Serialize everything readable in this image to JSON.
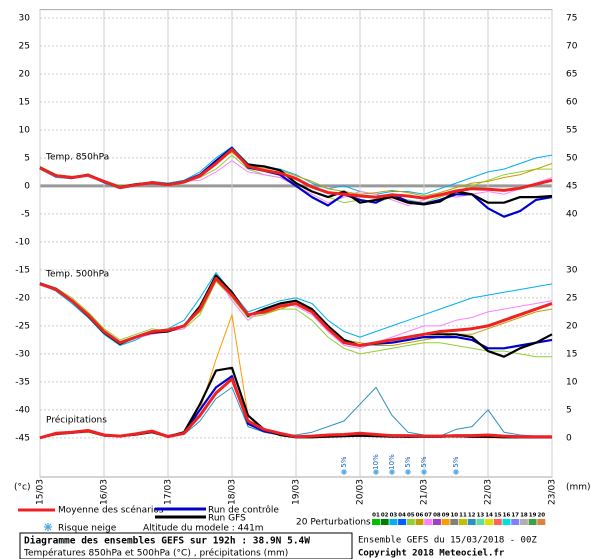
{
  "chart_data": {
    "type": "line",
    "x": [
      0,
      6,
      12,
      18,
      24,
      30,
      36,
      42,
      48,
      54,
      60,
      66,
      72,
      78,
      84,
      90,
      96,
      102,
      108,
      114,
      120,
      126,
      132,
      138,
      144,
      150,
      156,
      162,
      168,
      174,
      180,
      186,
      192
    ],
    "xlim": [
      0,
      192
    ],
    "xticks": [
      {
        "value": 0,
        "label": "15/03"
      },
      {
        "value": 24,
        "label": "16/03"
      },
      {
        "value": 48,
        "label": "17/03"
      },
      {
        "value": 72,
        "label": "18/03"
      },
      {
        "value": 96,
        "label": "19/03"
      },
      {
        "value": 120,
        "label": "20/03"
      },
      {
        "value": 144,
        "label": "21/03"
      },
      {
        "value": 168,
        "label": "22/03"
      },
      {
        "value": 192,
        "label": "23/03"
      }
    ],
    "ylim": [
      -52,
      31.5
    ],
    "yticks": [
      30,
      25,
      20,
      15,
      10,
      5,
      0,
      -5,
      -10,
      -15,
      -20,
      -25,
      -30,
      -35,
      -40,
      -45
    ],
    "y2lim": [
      -7,
      76.5
    ],
    "y2ticks": [
      75,
      70,
      65,
      60,
      55,
      50,
      45,
      40,
      30,
      25,
      20,
      15,
      10,
      5,
      0
    ],
    "y_unit": "(°c)",
    "y2_unit": "(mm)",
    "grid": true,
    "panel_labels": [
      "Temp. 850hPa",
      "Temp. 500hPa",
      "Précipitations"
    ],
    "series": [
      {
        "color": "#00b0f0",
        "values": [
          3,
          1.5,
          1.3,
          2,
          0.5,
          -0.5,
          0,
          0.8,
          0.5,
          1,
          2.5,
          5,
          7,
          4,
          3.5,
          3,
          2,
          0.5,
          -0.5,
          0,
          -1,
          -1.5,
          -1,
          -1,
          -1.5,
          -0.5,
          0.5,
          1.5,
          2.5,
          3,
          4,
          5,
          5.5
        ]
      },
      {
        "color": "#90d030",
        "values": [
          3.5,
          2,
          1.7,
          1.8,
          1,
          0,
          0.3,
          0.5,
          0,
          0.5,
          1.5,
          3,
          5.5,
          3,
          2,
          1.5,
          0.5,
          -1,
          -2,
          -3,
          -2.5,
          -3,
          -2,
          -2.5,
          -3,
          -2,
          -1,
          0,
          1,
          2,
          2.5,
          3,
          3
        ]
      },
      {
        "color": "#ff80ff",
        "values": [
          3,
          1.8,
          1.5,
          2,
          0.8,
          -0.2,
          0.2,
          0.6,
          0.3,
          0.8,
          1,
          2.5,
          4.5,
          2.5,
          2,
          1.5,
          0,
          -1.5,
          -3,
          -2,
          -1,
          -1.5,
          -2.5,
          -3.5,
          -2.5,
          -1.5,
          -2,
          -1.5,
          -1,
          -1.5,
          -0.5,
          0.5,
          1.5
        ]
      },
      {
        "color": "#c0a000",
        "values": [
          3.3,
          2,
          1.6,
          1.9,
          0.7,
          -0.4,
          0.1,
          0.7,
          0.2,
          0.6,
          2,
          4.5,
          6,
          3.8,
          3.2,
          2.8,
          1.8,
          0.8,
          -0.5,
          -1,
          -1.5,
          -1.2,
          -0.8,
          -1.2,
          -1.8,
          -1.2,
          -0.3,
          0.5,
          0.8,
          1.5,
          2,
          3,
          4
        ]
      },
      {
        "color": "#00b0f0",
        "values": [
          -17.5,
          -18.8,
          -21,
          -23.5,
          -26.5,
          -28.5,
          -27.5,
          -26,
          -25.5,
          -24,
          -20,
          -15.5,
          -19,
          -22.5,
          -21.5,
          -20.5,
          -20,
          -21,
          -24,
          -26,
          -27,
          -26,
          -25,
          -24,
          -23,
          -22,
          -21,
          -20,
          -19.5,
          -19,
          -18.5,
          -18,
          -17.5
        ]
      },
      {
        "color": "#90d030",
        "values": [
          -17.3,
          -18.2,
          -20,
          -22.5,
          -25.5,
          -27.5,
          -26.5,
          -25.5,
          -26,
          -25.5,
          -23,
          -17,
          -20,
          -23.5,
          -23,
          -22,
          -22,
          -24,
          -27,
          -29,
          -30,
          -29.5,
          -29,
          -28.5,
          -28,
          -28,
          -28.5,
          -29,
          -29.5,
          -29.5,
          -30,
          -30.5,
          -30.5
        ]
      },
      {
        "color": "#ff80ff",
        "values": [
          -17.6,
          -18.6,
          -20.8,
          -23,
          -26,
          -28.2,
          -27.2,
          -26.5,
          -26,
          -25.5,
          -21.5,
          -16,
          -20.5,
          -24,
          -22,
          -21,
          -21.5,
          -23,
          -26,
          -28.5,
          -29,
          -28,
          -27,
          -26,
          -25,
          -25,
          -24,
          -23.5,
          -22.5,
          -22,
          -21.5,
          -21,
          -20.5
        ]
      },
      {
        "color": "#c0a000",
        "values": [
          -17.4,
          -18.4,
          -20.4,
          -23.2,
          -26.2,
          -28,
          -27,
          -26,
          -25.5,
          -25,
          -22.5,
          -17,
          -19.5,
          -23,
          -22.8,
          -22,
          -21,
          -22,
          -25,
          -27.5,
          -28,
          -28.5,
          -28.5,
          -28,
          -27.5,
          -27,
          -26.5,
          -26.5,
          -25.5,
          -24.5,
          -23.5,
          -22.5,
          -22
        ]
      },
      {
        "color": "#ff9900",
        "axis": "y2",
        "values": [
          0,
          0.5,
          0.8,
          1,
          0.3,
          0.2,
          0.5,
          1,
          0.3,
          1,
          5,
          14,
          22,
          4,
          1,
          0.5,
          0.2,
          0,
          0.3,
          0.5,
          0.4,
          0.3,
          0.2,
          0.1,
          0.2,
          0.3,
          0.2,
          0.1,
          0,
          0,
          0.1,
          0,
          0
        ]
      },
      {
        "color": "#3090c0",
        "axis": "y2",
        "values": [
          0,
          0.7,
          1,
          1.3,
          0.5,
          0.3,
          0.8,
          1.3,
          0.2,
          0.6,
          3,
          7,
          9,
          2,
          1,
          0.5,
          0.5,
          1,
          2,
          3,
          6,
          9,
          4,
          1,
          0.5,
          0.3,
          1.5,
          2,
          5,
          1,
          0.5,
          0.3,
          0.2
        ]
      },
      {
        "name": "Run de contrôle",
        "color": "#0000cc",
        "values": [
          3.2,
          1.8,
          1.4,
          1.9,
          0.7,
          -0.3,
          0.2,
          0.5,
          0.2,
          0.8,
          2,
          4.5,
          6.8,
          3.3,
          2.7,
          2,
          0,
          -2,
          -3.5,
          -1.5,
          -2.5,
          -3,
          -1.5,
          -2.8,
          -3.2,
          -2.5,
          -1.5,
          -1.5,
          -4,
          -5.5,
          -4.5,
          -2.5,
          -2
        ]
      },
      {
        "name": "Run GFS",
        "color": "#000000",
        "values": [
          3.3,
          1.9,
          1.5,
          2,
          0.8,
          -0.2,
          0.3,
          0.6,
          0.3,
          0.7,
          1.8,
          4.2,
          6.6,
          3.8,
          3.5,
          2.8,
          0.5,
          -1,
          -2,
          -1,
          -3,
          -2.5,
          -2,
          -3,
          -3.3,
          -2.8,
          -1,
          -1.5,
          -3,
          -3,
          -2,
          -2,
          -1.8
        ]
      },
      {
        "name": "Moyenne des scénarios",
        "color": "#ee2222",
        "values": [
          3.2,
          1.8,
          1.5,
          1.9,
          0.8,
          -0.3,
          0.2,
          0.6,
          0.2,
          0.7,
          1.8,
          4,
          6.5,
          3.5,
          2.8,
          2.3,
          1.3,
          -0.2,
          -1.2,
          -1.5,
          -1.8,
          -2,
          -1.6,
          -1.8,
          -2.2,
          -1.6,
          -0.9,
          -0.5,
          -0.6,
          -0.8,
          -0.4,
          0.3,
          1
        ]
      },
      {
        "color": "#0000cc",
        "values": [
          -17.4,
          -18.4,
          -20.5,
          -23,
          -26,
          -28,
          -27,
          -26,
          -25.8,
          -25,
          -22,
          -16.5,
          -19.5,
          -23,
          -22.5,
          -21.5,
          -21,
          -22.5,
          -25.5,
          -28,
          -28.5,
          -28.2,
          -28,
          -27.5,
          -27,
          -27,
          -27,
          -27.5,
          -29,
          -29,
          -28.5,
          -28,
          -27.5
        ]
      },
      {
        "color": "#000000",
        "values": [
          -17.5,
          -18.5,
          -20.6,
          -23.2,
          -26.2,
          -28.2,
          -27,
          -26.2,
          -26,
          -25,
          -21.5,
          -16,
          -19,
          -23.2,
          -22,
          -21,
          -20.5,
          -22,
          -25,
          -27.5,
          -28.5,
          -28,
          -27.5,
          -27,
          -26.5,
          -26.5,
          -26.5,
          -27,
          -29.5,
          -30.5,
          -29,
          -28,
          -26.5
        ]
      },
      {
        "color": "#ee2222",
        "values": [
          -17.5,
          -18.5,
          -20.5,
          -23,
          -26,
          -28,
          -27,
          -26,
          -25.8,
          -25,
          -22,
          -16.5,
          -19.5,
          -23,
          -22.5,
          -21.5,
          -21,
          -22.5,
          -25.5,
          -28,
          -28.5,
          -28,
          -27.5,
          -27,
          -26.5,
          -26,
          -25.8,
          -25.5,
          -25,
          -24,
          -23,
          -22,
          -21
        ]
      },
      {
        "color": "#0000cc",
        "axis": "y2",
        "values": [
          0,
          0.7,
          0.9,
          1.2,
          0.4,
          0.3,
          0.6,
          1.1,
          0.3,
          0.9,
          5,
          9,
          11,
          2.5,
          1.2,
          0.6,
          0.2,
          0.2,
          0.3,
          0.4,
          0.5,
          0.4,
          0.3,
          0.2,
          0.2,
          0.2,
          0.3,
          0.2,
          0.2,
          0.2,
          0.1,
          0.1,
          0.1
        ]
      },
      {
        "color": "#000000",
        "axis": "y2",
        "values": [
          0,
          0.8,
          1,
          1.2,
          0.5,
          0.3,
          0.6,
          1,
          0.2,
          1,
          6,
          12,
          12.5,
          4,
          1.5,
          0.5,
          0.1,
          0.1,
          0.2,
          0.3,
          0.4,
          0.3,
          0.2,
          0.2,
          0.2,
          0.2,
          0.3,
          0.2,
          0.2,
          0.1,
          0.1,
          0.1,
          0.1
        ]
      },
      {
        "color": "#ee2222",
        "axis": "y2",
        "values": [
          0,
          0.8,
          1,
          1.3,
          0.5,
          0.3,
          0.7,
          1.2,
          0.2,
          0.8,
          4,
          8,
          10.5,
          3,
          1.5,
          0.8,
          0.2,
          0.3,
          0.5,
          0.6,
          0.8,
          0.6,
          0.4,
          0.4,
          0.3,
          0.3,
          0.4,
          0.4,
          0.5,
          0.3,
          0.2,
          0.2,
          0.2
        ]
      }
    ],
    "snow_risk": {
      "x": [
        114,
        126,
        132,
        138,
        144,
        156
      ],
      "values": [
        5,
        10,
        10,
        5,
        5,
        5
      ],
      "value_labels": [
        "5%",
        "10%",
        "10%",
        "5%",
        "5%",
        "5%"
      ]
    },
    "legend": {
      "snow": "Risque neige",
      "altitude": "Altitude du modele : 441m",
      "perturbations_title": "20 Perturbations",
      "perturbations": [
        {
          "label": "01",
          "color": "#00c000"
        },
        {
          "label": "02",
          "color": "#008000"
        },
        {
          "label": "03",
          "color": "#00b0f0"
        },
        {
          "label": "04",
          "color": "#0060ff"
        },
        {
          "label": "05",
          "color": "#90d030"
        },
        {
          "label": "06",
          "color": "#c0a000"
        },
        {
          "label": "07",
          "color": "#ff80ff"
        },
        {
          "label": "08",
          "color": "#a040c0"
        },
        {
          "label": "09",
          "color": "#ff9900"
        },
        {
          "label": "10",
          "color": "#808080"
        },
        {
          "label": "11",
          "color": "#c0c000"
        },
        {
          "label": "12",
          "color": "#3090c0"
        },
        {
          "label": "13",
          "color": "#60e0a0"
        },
        {
          "label": "14",
          "color": "#e0e000"
        },
        {
          "label": "15",
          "color": "#ff6060"
        },
        {
          "label": "16",
          "color": "#00e0e0"
        },
        {
          "label": "17",
          "color": "#8080ff"
        },
        {
          "label": "18",
          "color": "#b0b0b0"
        },
        {
          "label": "19",
          "color": "#40a040"
        },
        {
          "label": "20",
          "color": "#e08040"
        }
      ]
    },
    "footer": {
      "title": "Diagramme des ensembles GEFS sur 192h : 38.9N 5.4W",
      "subtitle": "Températures 850hPa et 500hPa (°C) , précipitations (mm)",
      "run": "Ensemble GEFS du 15/03/2018 - 00Z",
      "copyright": "Copyright 2018 Meteociel.fr"
    }
  }
}
